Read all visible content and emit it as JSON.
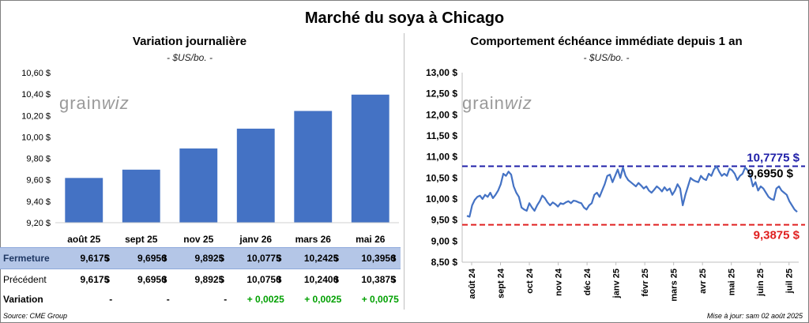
{
  "main_title": "Marché du soya à Chicago",
  "left": {
    "title": "Variation journalière",
    "unit": "- $US/bo. -",
    "watermark": "grainwiz"
  },
  "right": {
    "title": "Comportement échéance immédiate depuis 1 an",
    "unit": "- $US/bo. -",
    "watermark": "grainwiz",
    "high_label": "10,7775 $",
    "low_label": "9,3875 $",
    "last_label": "9,6950 $"
  },
  "table": {
    "row_labels": {
      "fermeture": "Fermeture",
      "precedent": "Précédent",
      "variation": "Variation"
    },
    "currency": "$",
    "fermeture": [
      "9,6175",
      "9,6950",
      "9,8925",
      "10,0775",
      "10,2425",
      "10,3950"
    ],
    "precedent": [
      "9,6175",
      "9,6950",
      "9,8925",
      "10,0750",
      "10,2400",
      "10,3875"
    ],
    "variation": [
      "-",
      "-",
      "-",
      "+ 0,0025",
      "+ 0,0025",
      "+ 0,0075"
    ]
  },
  "footer": {
    "source": "Source: CME Group",
    "updated": "Mise à jour: sam 02 août 2025"
  },
  "colors": {
    "bar": "#4472c4",
    "line": "#4472c4",
    "high": "#1f1fa8",
    "low": "#e02020",
    "ferm_row": "#b4c6e7",
    "positive": "#00a000"
  },
  "chart_data": [
    {
      "type": "bar",
      "title": "Variation journalière",
      "categories": [
        "août 25",
        "sept 25",
        "nov 25",
        "janv 26",
        "mars 26",
        "mai 26"
      ],
      "values": [
        9.6175,
        9.695,
        9.8925,
        10.0775,
        10.2425,
        10.395
      ],
      "ylim": [
        9.2,
        10.6
      ],
      "yticks": [
        "9,20 $",
        "9,40 $",
        "9,60 $",
        "9,80 $",
        "10,00 $",
        "10,20 $",
        "10,40 $",
        "10,60 $"
      ],
      "grid": false
    },
    {
      "type": "line",
      "title": "Comportement échéance immédiate depuis 1 an",
      "ylim": [
        8.5,
        13.0
      ],
      "yticks": [
        "8,50 $",
        "9,00 $",
        "9,50 $",
        "10,00 $",
        "10,50 $",
        "11,00 $",
        "11,50 $",
        "12,00 $",
        "12,50 $",
        "13,00 $"
      ],
      "xticks": [
        "août 24",
        "sept 24",
        "oct 24",
        "nov 24",
        "déc 24",
        "janv 25",
        "févr 25",
        "mars 25",
        "avr 25",
        "mai 25",
        "juin 25",
        "juil 25"
      ],
      "reference_lines": [
        {
          "value": 10.7775,
          "style": "dashed",
          "color": "#1f1fa8"
        },
        {
          "value": 9.3875,
          "style": "dashed",
          "color": "#e02020"
        }
      ],
      "series": [
        {
          "values": [
            9.6,
            9.58,
            9.85,
            9.98,
            10.05,
            10.08,
            10.0,
            10.1,
            10.05,
            10.15,
            10.02,
            10.1,
            10.2,
            10.35,
            10.6,
            10.55,
            10.65,
            10.58,
            10.3,
            10.15,
            10.05,
            9.8,
            9.75,
            9.72,
            9.9,
            9.8,
            9.72,
            9.85,
            9.95,
            10.08,
            10.02,
            9.92,
            9.85,
            9.92,
            9.88,
            9.82,
            9.9,
            9.88,
            9.92,
            9.95,
            9.9,
            9.96,
            9.95,
            9.92,
            9.9,
            9.8,
            9.75,
            9.85,
            9.9,
            10.1,
            10.15,
            10.05,
            10.2,
            10.35,
            10.55,
            10.58,
            10.4,
            10.55,
            10.7,
            10.5,
            10.75,
            10.55,
            10.45,
            10.4,
            10.35,
            10.3,
            10.38,
            10.32,
            10.25,
            10.3,
            10.2,
            10.15,
            10.22,
            10.3,
            10.25,
            10.18,
            10.28,
            10.2,
            10.25,
            10.1,
            10.2,
            10.35,
            10.25,
            9.85,
            10.1,
            10.3,
            10.5,
            10.45,
            10.42,
            10.4,
            10.55,
            10.48,
            10.45,
            10.6,
            10.55,
            10.7,
            10.78,
            10.65,
            10.55,
            10.6,
            10.55,
            10.72,
            10.68,
            10.6,
            10.45,
            10.55,
            10.6,
            10.75,
            10.68,
            10.55,
            10.3,
            10.4,
            10.2,
            10.3,
            10.25,
            10.15,
            10.05,
            10.0,
            9.98,
            10.25,
            10.3,
            10.2,
            10.15,
            10.1,
            9.95,
            9.85,
            9.75,
            9.695
          ]
        }
      ]
    }
  ]
}
